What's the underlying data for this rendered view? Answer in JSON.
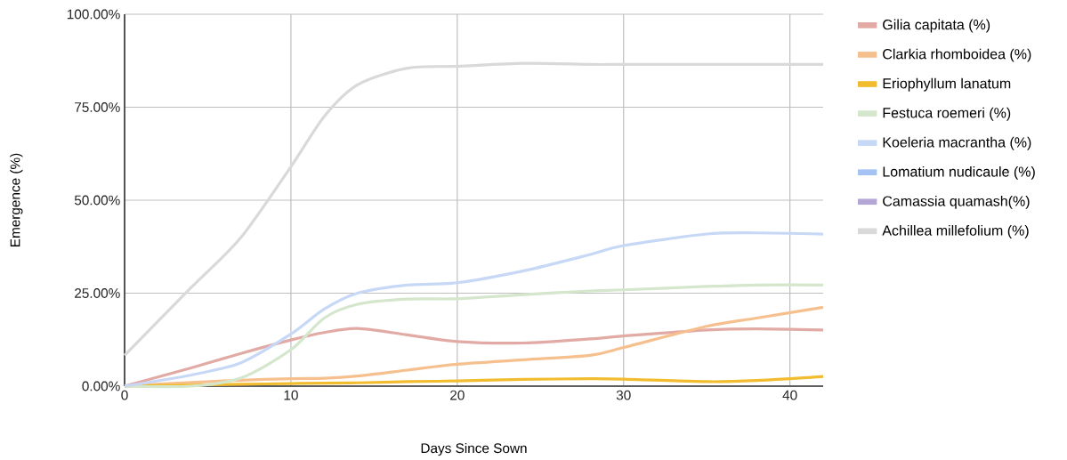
{
  "chart_data": {
    "type": "line",
    "xlabel": "Days Since Sown",
    "ylabel": "Emergence (%)",
    "x": [
      0,
      4,
      7,
      10,
      12,
      14,
      17,
      20,
      24,
      28,
      30,
      35,
      38,
      42
    ],
    "series": [
      {
        "name": "Gilia capitata (%)",
        "color": "#e2aaa4",
        "values": [
          0,
          4.9,
          8.8,
          12.4,
          14.4,
          15.5,
          13.8,
          12,
          11.6,
          12.7,
          13.5,
          15.1,
          15.4,
          15.1
        ]
      },
      {
        "name": "Clarkia rhomboidea (%)",
        "color": "#f6c08e",
        "values": [
          0,
          1,
          1.6,
          2,
          2.1,
          2.7,
          4.3,
          5.9,
          7.1,
          8.3,
          10.4,
          16.1,
          18.3,
          21.2
        ]
      },
      {
        "name": "Eriophyllum lanatum",
        "color": "#f1bd2f",
        "values": [
          0,
          0.3,
          0.5,
          0.7,
          0.8,
          0.9,
          1.2,
          1.4,
          1.8,
          2.0,
          1.9,
          1.2,
          1.5,
          2.6
        ]
      },
      {
        "name": "Festuca roemeri (%)",
        "color": "#d4e6cc",
        "values": [
          0,
          0,
          2.2,
          9.8,
          18.3,
          22,
          23.4,
          23.5,
          24.6,
          25.6,
          25.9,
          26.8,
          27.2,
          27.2
        ]
      },
      {
        "name": "Koeleria macrantha (%)",
        "color": "#c7d8f6",
        "values": [
          0,
          3,
          6.3,
          14,
          20.7,
          25,
          27.2,
          27.8,
          31,
          35.4,
          37.8,
          40.9,
          41.2,
          40.9
        ]
      },
      {
        "name": "Lomatium nudicaule (%)",
        "color": "#a4c2f4",
        "values": [
          null,
          null,
          null,
          null,
          null,
          null,
          null,
          null,
          null,
          null,
          null,
          null,
          null,
          null
        ]
      },
      {
        "name": "Camassia quamash(%)",
        "color": "#b4a7d6",
        "values": [
          null,
          null,
          null,
          null,
          null,
          null,
          null,
          null,
          null,
          null,
          null,
          null,
          null,
          null
        ]
      },
      {
        "name": "Achillea millefolium (%)",
        "color": "#d9d9d9",
        "values": [
          8.3,
          26.5,
          40,
          59,
          72.5,
          81,
          85.5,
          86,
          86.8,
          86.5,
          86.5,
          86.5,
          86.5,
          86.5
        ]
      }
    ],
    "xlim": [
      0,
      42
    ],
    "ylim": [
      0,
      100
    ],
    "xticks": [
      0,
      10,
      20,
      30,
      40
    ],
    "yticks": [
      {
        "value": 0,
        "label": "0.00%"
      },
      {
        "value": 25,
        "label": "25.00%"
      },
      {
        "value": 50,
        "label": "50.00%"
      },
      {
        "value": 75,
        "label": "75.00%"
      },
      {
        "value": 100,
        "label": "100.00%"
      }
    ],
    "grid": true,
    "legend": "right",
    "marker": "none",
    "line_style": "solid"
  }
}
